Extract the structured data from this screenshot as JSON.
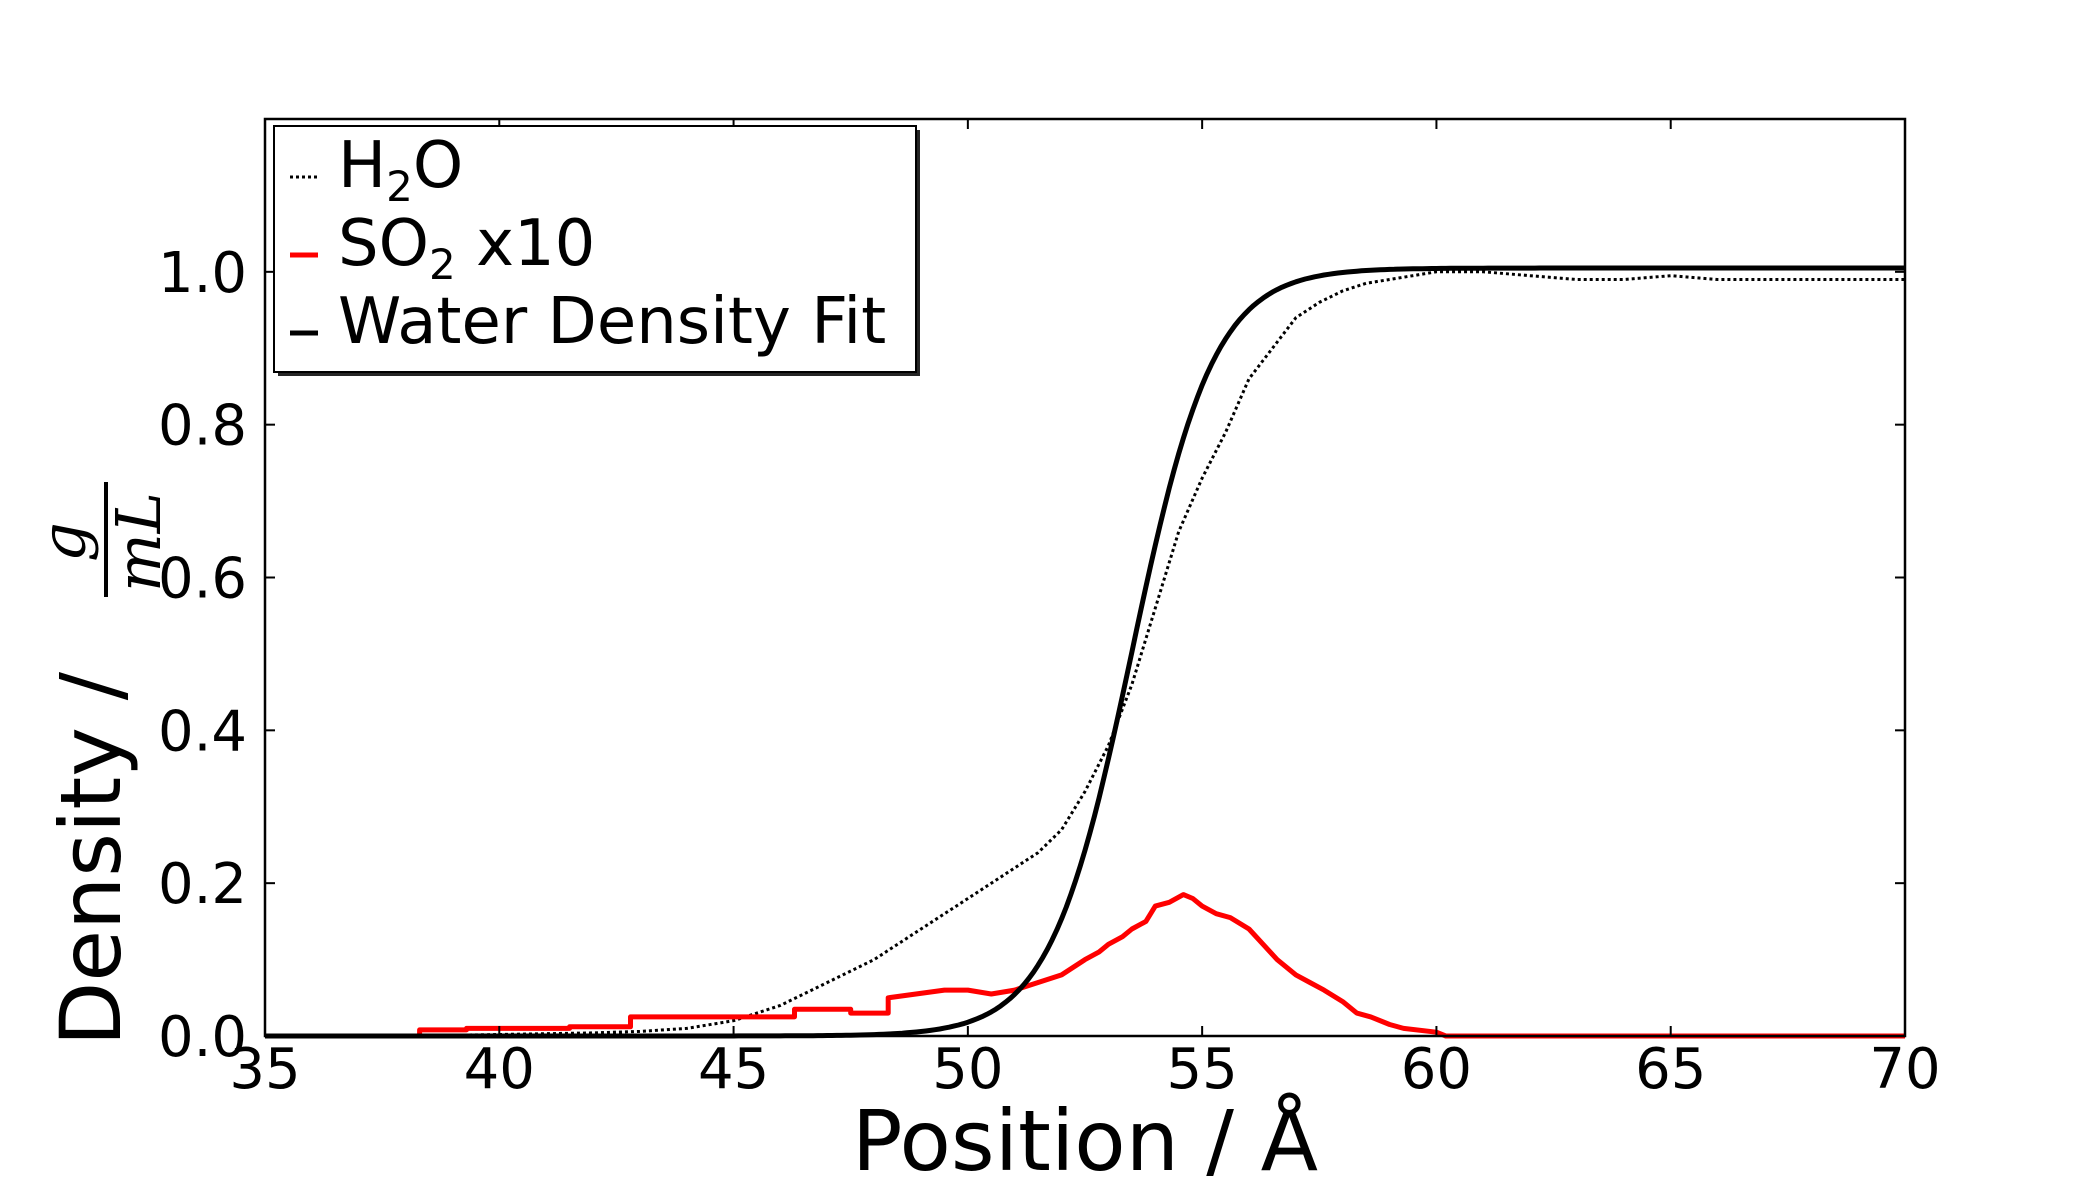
{
  "chart_data": {
    "type": "line",
    "title": "",
    "xlabel": "Position / Å",
    "ylabel": "Density /",
    "ylabel_fraction": {
      "numerator": "g",
      "denominator": "mL"
    },
    "xlim": [
      35,
      70
    ],
    "ylim": [
      0.0,
      1.2
    ],
    "xticks": [
      35,
      40,
      45,
      50,
      55,
      60,
      65,
      70
    ],
    "xtick_labels": [
      "35",
      "40",
      "45",
      "50",
      "55",
      "60",
      "65",
      "70"
    ],
    "yticks": [
      0.0,
      0.2,
      0.4,
      0.6,
      0.8,
      1.0
    ],
    "ytick_labels": [
      "0.0",
      "0.2",
      "0.4",
      "0.6",
      "0.8",
      "1.0"
    ],
    "grid": false,
    "legend_position": "top-left",
    "series": [
      {
        "name": "H2O",
        "legend_main": "H",
        "legend_sub": "2",
        "legend_tail": "O",
        "color": "#000000",
        "style": "dotted",
        "x": [
          35,
          38,
          40,
          42,
          43,
          44,
          45,
          46,
          47,
          48,
          49,
          50,
          50.5,
          51,
          51.5,
          52,
          52.5,
          53,
          53.5,
          54,
          54.5,
          55,
          55.5,
          56,
          56.5,
          57,
          57.5,
          58,
          58.5,
          59,
          60,
          61,
          62,
          63,
          64,
          65,
          66,
          67,
          68,
          69,
          70
        ],
        "y": [
          0.0,
          0.0,
          0.002,
          0.004,
          0.006,
          0.01,
          0.02,
          0.04,
          0.07,
          0.1,
          0.14,
          0.18,
          0.2,
          0.22,
          0.24,
          0.27,
          0.32,
          0.38,
          0.46,
          0.56,
          0.66,
          0.73,
          0.79,
          0.86,
          0.9,
          0.94,
          0.96,
          0.975,
          0.985,
          0.99,
          1.0,
          1.0,
          0.995,
          0.99,
          0.99,
          0.995,
          0.99,
          0.99,
          0.99,
          0.99,
          0.99
        ]
      },
      {
        "name": "SO2 x10",
        "legend_main": "SO",
        "legend_sub": "2",
        "legend_tail": " x10",
        "color": "#ff0000",
        "style": "solid",
        "x": [
          35,
          38.3,
          38.3,
          39.3,
          39.3,
          41.5,
          41.5,
          42.8,
          42.8,
          46.3,
          46.3,
          47.5,
          47.5,
          48.3,
          48.3,
          49.5,
          50.0,
          50.5,
          51.0,
          51.5,
          52.0,
          52.5,
          52.8,
          53.0,
          53.3,
          53.5,
          53.8,
          54.0,
          54.3,
          54.6,
          54.8,
          55.0,
          55.3,
          55.6,
          56.0,
          56.3,
          56.6,
          57.0,
          57.3,
          57.6,
          58.0,
          58.3,
          58.6,
          59.0,
          59.3,
          60.0,
          60.2,
          61,
          62,
          63,
          64,
          65,
          66,
          67,
          68,
          69,
          70
        ],
        "y": [
          0.0,
          0.0,
          0.008,
          0.008,
          0.01,
          0.01,
          0.012,
          0.012,
          0.025,
          0.025,
          0.035,
          0.035,
          0.03,
          0.03,
          0.05,
          0.06,
          0.06,
          0.055,
          0.06,
          0.07,
          0.08,
          0.1,
          0.11,
          0.12,
          0.13,
          0.14,
          0.15,
          0.17,
          0.175,
          0.185,
          0.18,
          0.17,
          0.16,
          0.155,
          0.14,
          0.12,
          0.1,
          0.08,
          0.07,
          0.06,
          0.045,
          0.03,
          0.025,
          0.015,
          0.01,
          0.005,
          0.0,
          0.0,
          0.0,
          0.0,
          0.0,
          0.0,
          0.0,
          0.0,
          0.0,
          0.0,
          0.0
        ]
      },
      {
        "name": "Water Density Fit",
        "legend_main": "Water Density Fit",
        "legend_sub": "",
        "legend_tail": "",
        "color": "#000000",
        "style": "solid-thick",
        "fit": {
          "rho": 1.005,
          "x0": 53.5,
          "d": 1.75
        },
        "x_range": [
          35,
          70
        ]
      }
    ]
  }
}
